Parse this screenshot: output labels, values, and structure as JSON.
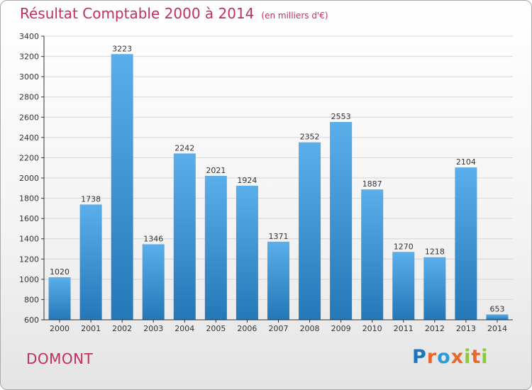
{
  "title": "Résultat Comptable 2000 à 2014",
  "subtitle": "(en milliers d'€)",
  "commune": "DOMONT",
  "logo": {
    "text": "Proxiti",
    "colors": [
      "#1c75bc",
      "#e8672a",
      "#2e9bd6",
      "#e8672a",
      "#8dc63f",
      "#e8672a",
      "#8dc63f"
    ]
  },
  "colors": {
    "title": "#c0305a",
    "bar_light": "#5aaeea",
    "bar_dark": "#2478b8",
    "axis": "#333333",
    "grid": "#d6d6d6"
  },
  "chart_data": {
    "type": "bar",
    "categories": [
      "2000",
      "2001",
      "2002",
      "2003",
      "2004",
      "2005",
      "2006",
      "2007",
      "2008",
      "2009",
      "2010",
      "2011",
      "2012",
      "2013",
      "2014"
    ],
    "values": [
      1020,
      1738,
      3223,
      1346,
      2242,
      2021,
      1924,
      1371,
      2352,
      2553,
      1887,
      1270,
      1218,
      2104,
      653
    ],
    "ylim": [
      600,
      3400
    ],
    "yticks": [
      600,
      800,
      1000,
      1200,
      1400,
      1600,
      1800,
      2000,
      2200,
      2400,
      2600,
      2800,
      3000,
      3200,
      3400
    ],
    "grid": true,
    "data_labels": true
  }
}
